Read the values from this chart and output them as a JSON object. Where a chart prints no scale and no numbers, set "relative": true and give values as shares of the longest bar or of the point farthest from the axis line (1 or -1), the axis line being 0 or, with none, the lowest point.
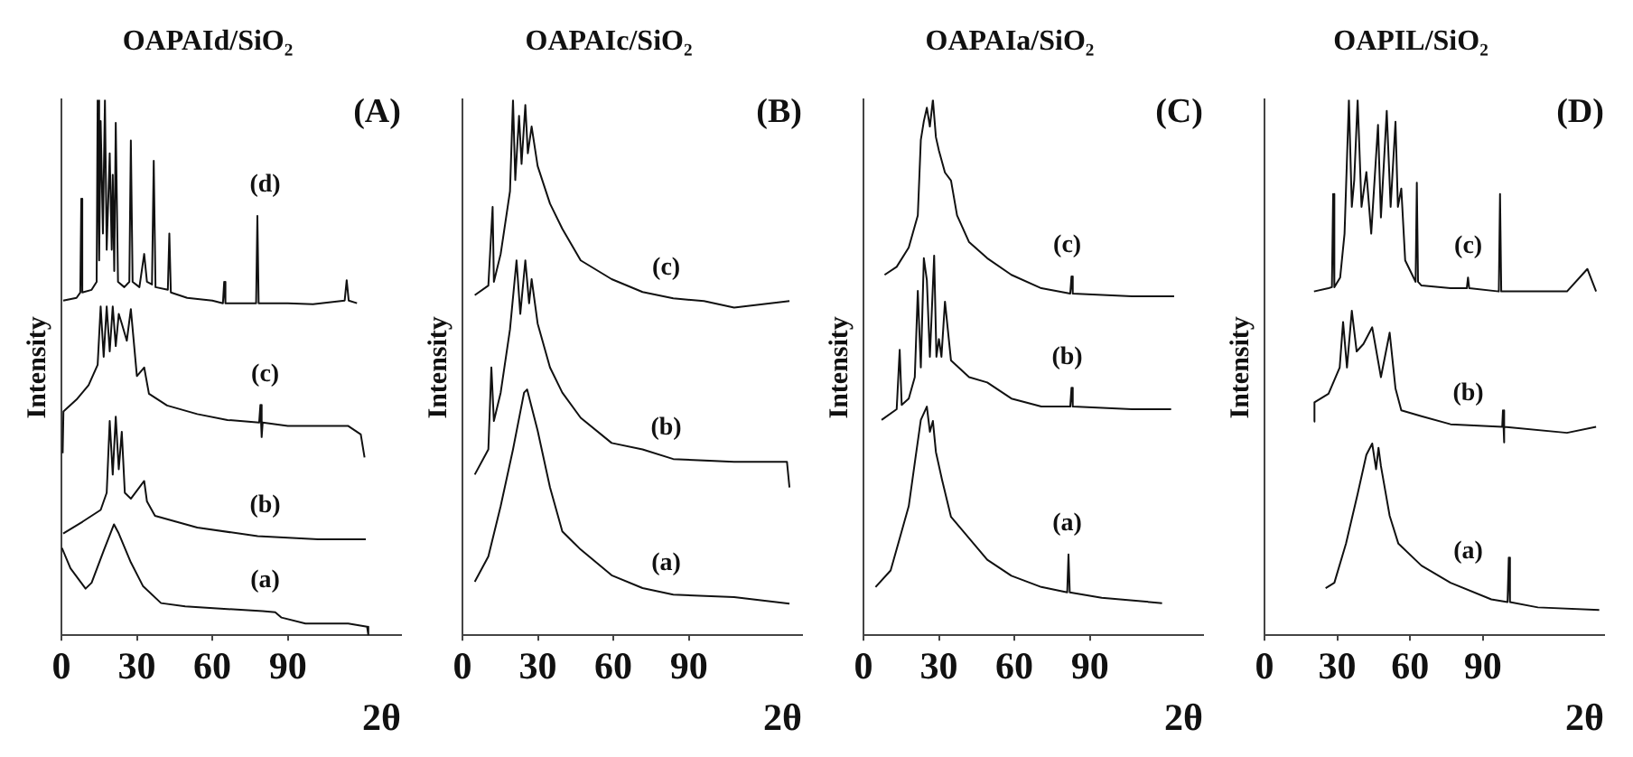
{
  "chart_data": [
    {
      "type": "line",
      "title": "OAPAId/SiO₂",
      "annotations": [
        "(A)"
      ],
      "xlabel": "2θ",
      "ylabel": "Intensity",
      "relative": true,
      "xlim": [
        0,
        135
      ],
      "xticks": [
        0,
        30,
        60,
        90
      ],
      "legend": false,
      "marker": "none",
      "line_style": "solid",
      "series": [
        {
          "name": "(d)",
          "color": "#111111",
          "x": [
            0.7,
            6,
            7.5,
            7.9,
            8.3,
            12,
            14,
            14.4,
            15,
            15.6,
            16.5,
            17.3,
            18,
            19.2,
            20,
            20.4,
            21,
            21.6,
            22.5,
            25,
            27,
            27.6,
            28.3,
            31,
            32.9,
            34,
            36,
            36.7,
            37.4,
            42.3,
            42.9,
            43.5,
            50,
            60,
            64.2,
            64.7,
            65.2,
            72,
            77.4,
            77.9,
            78.4,
            90,
            100,
            112.6,
            113.4,
            114.2,
            117.5
          ],
          "values": [
            0.625,
            0.63,
            0.64,
            0.815,
            0.64,
            0.645,
            0.66,
            1.0,
            0.7,
            0.96,
            0.75,
            1.0,
            0.72,
            0.9,
            0.72,
            0.86,
            0.68,
            0.957,
            0.66,
            0.65,
            0.66,
            0.924,
            0.66,
            0.65,
            0.712,
            0.66,
            0.655,
            0.886,
            0.65,
            0.645,
            0.75,
            0.64,
            0.63,
            0.625,
            0.62,
            0.66,
            0.62,
            0.62,
            0.62,
            0.783,
            0.62,
            0.62,
            0.618,
            0.625,
            0.663,
            0.625,
            0.62
          ]
        },
        {
          "name": "(c)",
          "color": "#111111",
          "x": [
            0.5,
            0.8,
            6,
            10.8,
            14.4,
            15.6,
            16.8,
            18,
            19.2,
            20.4,
            21.6,
            22.8,
            24,
            26,
            27.6,
            30,
            32.9,
            34.8,
            42,
            54,
            66,
            78.6,
            79.1,
            79.6,
            80,
            90,
            113.9,
            119,
            120.5
          ],
          "values": [
            0.34,
            0.418,
            0.44,
            0.467,
            0.505,
            0.614,
            0.52,
            0.614,
            0.53,
            0.614,
            0.54,
            0.6,
            0.582,
            0.55,
            0.609,
            0.484,
            0.5,
            0.451,
            0.429,
            0.413,
            0.402,
            0.397,
            0.43,
            0.37,
            0.397,
            0.391,
            0.391,
            0.375,
            0.332
          ]
        },
        {
          "name": "(b)",
          "color": "#111111",
          "x": [
            0.7,
            8.4,
            15.6,
            18,
            19.2,
            20.4,
            21.6,
            22.8,
            24,
            25.2,
            27.6,
            32.9,
            34,
            37.2,
            54,
            78,
            102,
            121
          ],
          "values": [
            0.19,
            0.212,
            0.234,
            0.266,
            0.4,
            0.3,
            0.408,
            0.31,
            0.38,
            0.266,
            0.255,
            0.288,
            0.25,
            0.223,
            0.201,
            0.185,
            0.179,
            0.179
          ]
        },
        {
          "name": "(a)",
          "color": "#111111",
          "x": [
            0.2,
            3.6,
            9.6,
            12,
            16.8,
            20.9,
            22.8,
            27.6,
            32.4,
            39.6,
            49.2,
            66,
            80,
            85,
            87.5,
            97,
            114,
            121.5,
            122
          ],
          "values": [
            0.163,
            0.125,
            0.087,
            0.098,
            0.158,
            0.207,
            0.19,
            0.136,
            0.092,
            0.06,
            0.054,
            0.049,
            0.045,
            0.043,
            0.033,
            0.022,
            0.022,
            0.016,
            0
          ]
        }
      ]
    },
    {
      "type": "line",
      "title": "OAPAIc/SiO₂",
      "annotations": [
        "(B)"
      ],
      "xlabel": "2θ",
      "ylabel": "Intensity",
      "relative": true,
      "xlim": [
        0,
        135
      ],
      "xticks": [
        0,
        30,
        60,
        90
      ],
      "legend": false,
      "marker": "none",
      "line_style": "solid",
      "series": [
        {
          "name": "(c)",
          "color": "#111111",
          "x": [
            4.9,
            10.3,
            12,
            12.5,
            15.2,
            18.9,
            20.1,
            21,
            22.5,
            23.5,
            25,
            26,
            27.5,
            29.9,
            34.8,
            39.7,
            47,
            59.3,
            71.6,
            83.8,
            96,
            108,
            130
          ],
          "values": [
            0.635,
            0.653,
            0.8,
            0.66,
            0.712,
            0.829,
            1.0,
            0.85,
            0.97,
            0.88,
            0.99,
            0.9,
            0.95,
            0.876,
            0.806,
            0.759,
            0.7,
            0.665,
            0.641,
            0.629,
            0.624,
            0.612,
            0.624
          ]
        },
        {
          "name": "(b)",
          "color": "#111111",
          "x": [
            4.9,
            10.3,
            11.5,
            12.5,
            15.2,
            18.9,
            21.5,
            23,
            25,
            26.5,
            27.5,
            29.9,
            34.8,
            39.7,
            47,
            59.3,
            71.6,
            83.8,
            108,
            129,
            130
          ],
          "values": [
            0.3,
            0.347,
            0.5,
            0.4,
            0.453,
            0.571,
            0.7,
            0.6,
            0.7,
            0.62,
            0.665,
            0.582,
            0.5,
            0.453,
            0.406,
            0.359,
            0.347,
            0.329,
            0.324,
            0.324,
            0.276
          ]
        },
        {
          "name": "(a)",
          "color": "#111111",
          "x": [
            4.9,
            10.3,
            15.2,
            20.1,
            24.5,
            25.7,
            29.9,
            34.8,
            39.7,
            44.6,
            47,
            59.3,
            71.6,
            83.8,
            108,
            130
          ],
          "values": [
            0.1,
            0.147,
            0.241,
            0.347,
            0.453,
            0.459,
            0.382,
            0.276,
            0.194,
            0.171,
            0.16,
            0.112,
            0.088,
            0.076,
            0.071,
            0.059
          ]
        }
      ]
    },
    {
      "type": "line",
      "title": "OAPAIa/SiO₂",
      "annotations": [
        "(C)"
      ],
      "xlabel": "2θ",
      "ylabel": "Intensity",
      "relative": true,
      "xlim": [
        0,
        135
      ],
      "xticks": [
        0,
        30,
        60,
        90
      ],
      "legend": false,
      "marker": "none",
      "line_style": "solid",
      "series": [
        {
          "name": "(c)",
          "color": "#111111",
          "x": [
            8.4,
            13.2,
            18,
            21.6,
            22.8,
            24,
            25.2,
            26.4,
            27.6,
            28.8,
            30,
            32.4,
            34.8,
            37.2,
            42,
            49.2,
            58.8,
            70.7,
            82.2,
            82.7,
            83.2,
            106.7,
            123.5
          ],
          "values": [
            0.673,
            0.688,
            0.724,
            0.784,
            0.925,
            0.96,
            0.985,
            0.95,
            1.0,
            0.93,
            0.905,
            0.864,
            0.849,
            0.784,
            0.734,
            0.704,
            0.673,
            0.648,
            0.638,
            0.67,
            0.638,
            0.633,
            0.633
          ]
        },
        {
          "name": "(b)",
          "color": "#111111",
          "x": [
            7.2,
            13.2,
            14.4,
            15.2,
            18,
            20.4,
            21.6,
            22.8,
            24,
            25.2,
            26.4,
            28.1,
            29,
            30,
            31,
            32.4,
            34.8,
            42,
            49.2,
            58.8,
            70.7,
            82.2,
            82.7,
            83.2,
            106.7,
            122.3
          ],
          "values": [
            0.402,
            0.422,
            0.533,
            0.43,
            0.442,
            0.482,
            0.643,
            0.5,
            0.704,
            0.663,
            0.52,
            0.709,
            0.52,
            0.553,
            0.52,
            0.623,
            0.513,
            0.482,
            0.472,
            0.442,
            0.427,
            0.427,
            0.462,
            0.427,
            0.422,
            0.422
          ]
        },
        {
          "name": "(a)",
          "color": "#111111",
          "x": [
            4.8,
            10.8,
            14.4,
            18,
            20.4,
            22.8,
            25.2,
            26.4,
            27.6,
            28.8,
            31.2,
            34.8,
            42,
            49.2,
            58.8,
            70.7,
            81,
            81.5,
            82,
            94.7,
            118.7
          ],
          "values": [
            0.09,
            0.121,
            0.181,
            0.241,
            0.322,
            0.402,
            0.427,
            0.38,
            0.4,
            0.342,
            0.291,
            0.221,
            0.181,
            0.141,
            0.111,
            0.09,
            0.08,
            0.151,
            0.08,
            0.07,
            0.06
          ]
        }
      ]
    },
    {
      "type": "line",
      "title": "OAPIL/SiO₂",
      "annotations": [
        "(D)"
      ],
      "xlabel": "2θ",
      "ylabel": "Intensity",
      "relative": true,
      "xlim": [
        0,
        140
      ],
      "xticks": [
        0,
        30,
        60,
        90
      ],
      "legend": false,
      "marker": "none",
      "line_style": "solid",
      "series": [
        {
          "name": "(c)",
          "color": "#111111",
          "x": [
            20.4,
            26.4,
            27.8,
            28.3,
            28.8,
            31.2,
            33,
            34.8,
            36,
            37,
            38.4,
            40,
            42,
            44,
            46.8,
            48,
            50.4,
            52,
            54,
            55,
            56.4,
            58,
            62.3,
            62.8,
            63.3,
            64.7,
            76.7,
            83.4,
            83.9,
            84.4,
            96.6,
            97.1,
            97.6,
            124.7,
            133.1,
            136.7
          ],
          "values": [
            0.642,
            0.648,
            0.65,
            0.824,
            0.65,
            0.668,
            0.75,
            1.0,
            0.8,
            0.85,
            1.0,
            0.8,
            0.865,
            0.75,
            0.953,
            0.78,
            0.979,
            0.8,
            0.959,
            0.8,
            0.834,
            0.7,
            0.66,
            0.845,
            0.66,
            0.653,
            0.648,
            0.648,
            0.668,
            0.648,
            0.642,
            0.824,
            0.642,
            0.642,
            0.684,
            0.642
          ]
        },
        {
          "name": "(b)",
          "color": "#111111",
          "x": [
            20.4,
            20.6,
            26.4,
            31,
            32.4,
            34,
            36,
            38,
            40.8,
            44.4,
            48,
            51.6,
            54,
            56.4,
            64.7,
            76.7,
            98,
            98.3,
            98.6,
            99,
            124.7,
            136.7
          ],
          "values": [
            0.399,
            0.435,
            0.451,
            0.5,
            0.585,
            0.5,
            0.606,
            0.53,
            0.544,
            0.575,
            0.482,
            0.565,
            0.461,
            0.42,
            0.409,
            0.394,
            0.389,
            0.42,
            0.36,
            0.389,
            0.378,
            0.389
          ]
        },
        {
          "name": "(a)",
          "color": "#111111",
          "x": [
            25.2,
            28.8,
            33.6,
            38.4,
            42,
            44.4,
            46,
            47,
            48,
            51.6,
            55.2,
            64.7,
            76.7,
            93.5,
            100.2,
            100.7,
            101.2,
            112.7,
            138
          ],
          "values": [
            0.088,
            0.098,
            0.171,
            0.264,
            0.337,
            0.358,
            0.31,
            0.35,
            0.316,
            0.223,
            0.171,
            0.13,
            0.098,
            0.067,
            0.062,
            0.145,
            0.062,
            0.052,
            0.047
          ]
        }
      ]
    }
  ]
}
